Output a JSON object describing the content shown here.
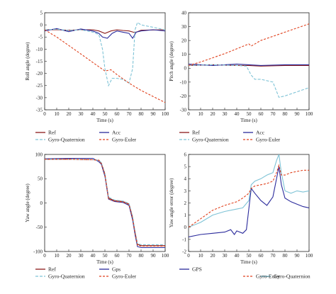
{
  "chart_data": [
    {
      "type": "line",
      "xlabel": "Time (s)",
      "ylabel": "Roll angle (degree)",
      "xlim": [
        0,
        100
      ],
      "ylim": [
        -35,
        5
      ],
      "xticks": [
        0,
        10,
        20,
        30,
        40,
        50,
        60,
        70,
        80,
        90,
        100
      ],
      "yticks": [
        5,
        0,
        -5,
        -10,
        -15,
        -20,
        -25,
        -30,
        -35
      ],
      "legend_position": "bottom",
      "series": [
        {
          "name": "Ref",
          "color": "#8b1a1a",
          "dash": "none",
          "x": [
            0,
            10,
            20,
            30,
            40,
            45,
            50,
            55,
            60,
            65,
            70,
            75,
            80,
            90,
            100
          ],
          "y": [
            -2,
            -2,
            -2.2,
            -2,
            -2,
            -2.5,
            -3.5,
            -2.5,
            -2,
            -2.3,
            -2.5,
            -3.2,
            -2.2,
            -2.1,
            -2
          ]
        },
        {
          "name": "Acc",
          "color": "#2b2b9c",
          "dash": "none",
          "x": [
            0,
            10,
            20,
            30,
            40,
            45,
            48,
            52,
            56,
            60,
            65,
            70,
            73,
            76,
            80,
            90,
            100
          ],
          "y": [
            -2.5,
            -1.5,
            -2.8,
            -1.7,
            -2.5,
            -3.5,
            -5,
            -5.5,
            -3.5,
            -2.5,
            -3,
            -3.5,
            -5.5,
            -3,
            -2.5,
            -2,
            -2.5
          ]
        },
        {
          "name": "Gyro-Quaternion",
          "color": "#7ec3d6",
          "dash": "4,2",
          "x": [
            0,
            10,
            20,
            30,
            40,
            45,
            48,
            50,
            53,
            56,
            60,
            65,
            70,
            73,
            75,
            77,
            80,
            90,
            100
          ],
          "y": [
            -2,
            -1.8,
            -2.3,
            -2,
            -3,
            -4,
            -10,
            -18,
            -25,
            -22,
            -22,
            -22.5,
            -24,
            -18,
            -2,
            1,
            0,
            -1,
            -2
          ]
        },
        {
          "name": "Gyro-Euler",
          "color": "#e0411d",
          "dash": "3,2",
          "x": [
            0,
            10,
            20,
            30,
            40,
            50,
            55,
            60,
            70,
            75,
            80,
            90,
            100
          ],
          "y": [
            -2,
            -5,
            -8.5,
            -12,
            -15.5,
            -19,
            -18.5,
            -20.5,
            -24,
            -25.5,
            -27,
            -29.5,
            -32
          ]
        }
      ]
    },
    {
      "type": "line",
      "xlabel": "Time (s)",
      "ylabel": "Pitch angle (degree)",
      "xlim": [
        0,
        100
      ],
      "ylim": [
        -30,
        40
      ],
      "xticks": [
        0,
        10,
        20,
        30,
        40,
        50,
        60,
        70,
        80,
        90,
        100
      ],
      "yticks": [
        40,
        30,
        20,
        10,
        0,
        -10,
        -20,
        -30
      ],
      "legend_position": "bottom",
      "series": [
        {
          "name": "Ref",
          "color": "#8b1a1a",
          "dash": "none",
          "x": [
            0,
            20,
            40,
            50,
            60,
            80,
            100
          ],
          "y": [
            2,
            2.5,
            2,
            2,
            1.5,
            2,
            2
          ]
        },
        {
          "name": "Acc",
          "color": "#2b2b9c",
          "dash": "none",
          "x": [
            0,
            20,
            40,
            50,
            60,
            80,
            100
          ],
          "y": [
            3,
            2,
            3,
            2.5,
            2,
            2.5,
            2.5
          ]
        },
        {
          "name": "Gyro-Quaternion",
          "color": "#7ec3d6",
          "dash": "4,2",
          "x": [
            0,
            20,
            40,
            48,
            52,
            55,
            60,
            70,
            75,
            80,
            90,
            100
          ],
          "y": [
            2,
            2.5,
            2,
            1.5,
            -5,
            -8,
            -8,
            -10,
            -21,
            -20,
            -17,
            -14
          ]
        },
        {
          "name": "Gyro-Euler",
          "color": "#e0411d",
          "dash": "3,2",
          "x": [
            0,
            10,
            20,
            30,
            40,
            50,
            52,
            60,
            70,
            80,
            90,
            100
          ],
          "y": [
            2,
            4.5,
            7.5,
            10.5,
            14,
            17.5,
            16,
            20,
            23,
            26,
            29,
            32
          ]
        }
      ]
    },
    {
      "type": "line",
      "xlabel": "Time (s)",
      "ylabel": "Yaw angle (degree)",
      "xlim": [
        0,
        100
      ],
      "ylim": [
        -100,
        100
      ],
      "xticks": [
        0,
        10,
        20,
        30,
        40,
        50,
        60,
        70,
        80,
        90,
        100
      ],
      "yticks": [
        100,
        50,
        0,
        -50,
        -100
      ],
      "legend_position": "bottom",
      "series": [
        {
          "name": "Ref",
          "color": "#8b1a1a",
          "dash": "none",
          "x": [
            0,
            20,
            40,
            45,
            47,
            50,
            53,
            58,
            65,
            70,
            73,
            75,
            77,
            80,
            90,
            100
          ],
          "y": [
            90,
            90,
            89,
            88,
            82,
            60,
            10,
            5,
            3,
            -2,
            -30,
            -60,
            -85,
            -88,
            -88,
            -88
          ]
        },
        {
          "name": "Gps",
          "color": "#2b2b9c",
          "dash": "none",
          "x": [
            0,
            20,
            40,
            45,
            47,
            50,
            53,
            58,
            65,
            70,
            73,
            75,
            77,
            80,
            90,
            100
          ],
          "y": [
            91,
            92,
            92,
            85,
            80,
            55,
            8,
            3,
            1,
            -5,
            -35,
            -65,
            -90,
            -92,
            -92,
            -92
          ]
        },
        {
          "name": "Gyro-Quaternion",
          "color": "#7ec3d6",
          "dash": "4,2",
          "x": [
            0,
            20,
            40,
            45,
            47,
            50,
            53,
            58,
            65,
            70,
            73,
            75,
            77,
            80,
            90,
            100
          ],
          "y": [
            90,
            90,
            89,
            88,
            83,
            60,
            12,
            6,
            4,
            -1,
            -28,
            -58,
            -84,
            -86,
            -86,
            -86
          ]
        },
        {
          "name": "Gyro-Euler",
          "color": "#e0411d",
          "dash": "3,2",
          "x": [
            0,
            20,
            40,
            45,
            47,
            50,
            53,
            58,
            65,
            70,
            73,
            75,
            77,
            80,
            90,
            100
          ],
          "y": [
            90,
            90,
            89,
            88,
            81,
            58,
            8,
            4,
            2,
            -3,
            -32,
            -62,
            -87,
            -89,
            -89,
            -89
          ]
        }
      ]
    },
    {
      "type": "line",
      "xlabel": "Time (s)",
      "ylabel": "Yaw angle error (degree)",
      "xlim": [
        0,
        100
      ],
      "ylim": [
        -2,
        6
      ],
      "xticks": [
        0,
        10,
        20,
        30,
        40,
        50,
        60,
        70,
        80,
        90,
        100
      ],
      "yticks": [
        6,
        5,
        4,
        3,
        2,
        1,
        0,
        -1,
        -2
      ],
      "legend_position": "bottom",
      "series": [
        {
          "name": "GPS",
          "color": "#2b2b9c",
          "dash": "none",
          "x": [
            0,
            10,
            20,
            30,
            35,
            38,
            40,
            45,
            48,
            50,
            52,
            55,
            60,
            65,
            70,
            73,
            75,
            77,
            80,
            85,
            90,
            95,
            100
          ],
          "y": [
            -0.8,
            -0.6,
            -0.5,
            -0.4,
            -0.2,
            -0.6,
            -0.3,
            -0.5,
            -0.2,
            1.5,
            3.2,
            2.8,
            2.2,
            1.8,
            2.5,
            4,
            5,
            3.5,
            2.4,
            2.1,
            1.9,
            1.7,
            1.6
          ]
        },
        {
          "name": "Gyro-Quaternion",
          "color": "#7ec3d6",
          "dash": "none",
          "x": [
            0,
            10,
            20,
            30,
            40,
            45,
            50,
            52,
            55,
            60,
            65,
            70,
            73,
            75,
            77,
            80,
            85,
            90,
            95,
            100
          ],
          "y": [
            0,
            0.4,
            1,
            1.3,
            1.5,
            1.6,
            2.2,
            3.5,
            3.8,
            4,
            4.3,
            4.5,
            5.5,
            6,
            4.5,
            3,
            2.8,
            3,
            2.9,
            3
          ]
        },
        {
          "name": "Gyro-Euler",
          "color": "#e0411d",
          "dash": "3,2",
          "x": [
            0,
            10,
            20,
            30,
            40,
            45,
            50,
            52,
            55,
            60,
            65,
            70,
            73,
            75,
            77,
            80,
            85,
            90,
            95,
            100
          ],
          "y": [
            0,
            0.7,
            1.4,
            1.8,
            2.1,
            2.4,
            2.8,
            3.2,
            3.4,
            3.5,
            3.6,
            3.8,
            4.5,
            5.1,
            4.3,
            4.3,
            4.5,
            4.6,
            4.7,
            4.7
          ]
        }
      ]
    }
  ]
}
